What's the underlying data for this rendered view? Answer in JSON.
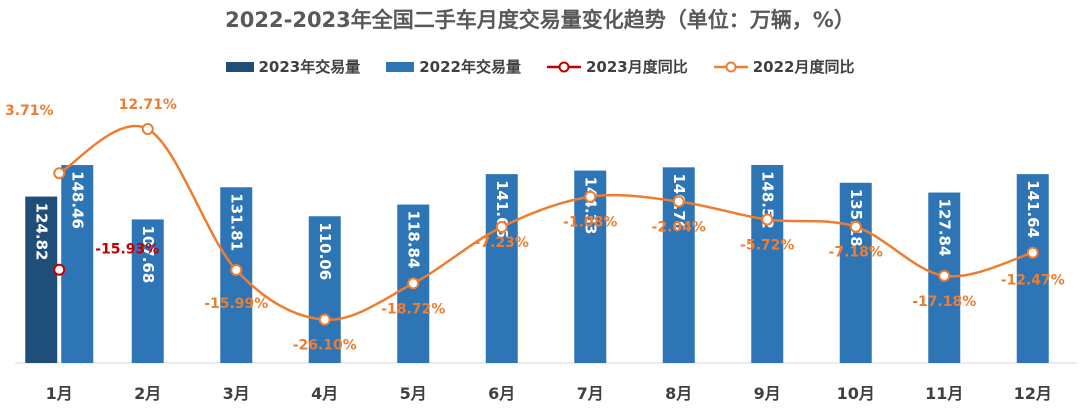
{
  "title": "2022-2023年全国二手车月度交易量变化趋势（单位：万辆，%）",
  "legend": [
    {
      "label": "2023年交易量",
      "kind": "bar",
      "color": "#1f4e79"
    },
    {
      "label": "2022年交易量",
      "kind": "bar",
      "color": "#2e75b6"
    },
    {
      "label": "2023月度同比",
      "kind": "line",
      "color": "#c00000"
    },
    {
      "label": "2022月度同比",
      "kind": "line",
      "color": "#ed7d31"
    }
  ],
  "chart_data": {
    "type": "bar",
    "title": "2022-2023年全国二手车月度交易量变化趋势（单位：万辆，%）",
    "categories": [
      "1月",
      "2月",
      "3月",
      "4月",
      "5月",
      "6月",
      "7月",
      "8月",
      "9月",
      "10月",
      "11月",
      "12月"
    ],
    "series": [
      {
        "name": "2023年交易量",
        "type": "bar",
        "color": "#1f4e79",
        "values": [
          124.82,
          null,
          null,
          null,
          null,
          null,
          null,
          null,
          null,
          null,
          null,
          null
        ],
        "labels": [
          "124.82",
          "",
          "",
          "",
          "",
          "",
          "",
          "",
          "",
          "",
          "",
          ""
        ]
      },
      {
        "name": "2022年交易量",
        "type": "bar",
        "color": "#2e75b6",
        "values": [
          148.46,
          107.68,
          131.81,
          110.06,
          118.84,
          141.66,
          144.33,
          146.76,
          148.52,
          135.18,
          127.84,
          141.64
        ],
        "labels": [
          "148.46",
          "107.68",
          "131.81",
          "110.06",
          "118.84",
          "141.66",
          "144.33",
          "146.76",
          "148.52",
          "135.18",
          "127.84",
          "141.64"
        ]
      },
      {
        "name": "2023月度同比",
        "type": "line",
        "color": "#c00000",
        "values": [
          -15.93,
          null,
          null,
          null,
          null,
          null,
          null,
          null,
          null,
          null,
          null,
          null
        ],
        "labels": [
          "-15.93%",
          "",
          "",
          "",
          "",
          "",
          "",
          "",
          "",
          "",
          "",
          ""
        ]
      },
      {
        "name": "2022月度同比",
        "type": "line",
        "color": "#ed7d31",
        "values": [
          3.71,
          12.71,
          -15.99,
          -26.1,
          -18.72,
          -7.23,
          -1.08,
          -2.04,
          -5.72,
          -7.18,
          -17.18,
          -12.47
        ],
        "labels": [
          "3.71%",
          "12.71%",
          "-15.99%",
          "-26.10%",
          "-18.72%",
          "-7.23%",
          "-1.08%",
          "-2.04%",
          "-5.72%",
          "-7.18%",
          "-17.18%",
          "-12.47%"
        ]
      }
    ],
    "bar_ylim": [
      0,
      160
    ],
    "line_ylim": [
      -30,
      20
    ],
    "grid": false,
    "legend_position": "top"
  }
}
